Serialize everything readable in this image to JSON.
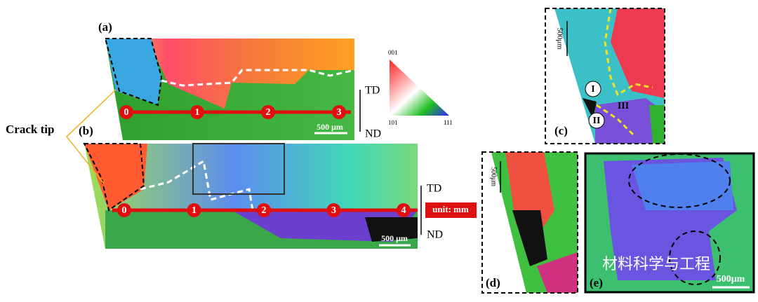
{
  "annotation": "Crack tip",
  "ipf_legend": {
    "corners": [
      "001",
      "101",
      "111"
    ]
  },
  "panels": {
    "a": {
      "label": "(a)",
      "ticks": [
        "0",
        "1",
        "2",
        "3"
      ],
      "scale_bar": "500 μm",
      "top_dir": "TD",
      "bottom_dir": "ND"
    },
    "b": {
      "label": "(b)",
      "ticks": [
        "0",
        "1",
        "2",
        "3",
        "4"
      ],
      "scale_bar": "500 μm",
      "top_dir": "TD",
      "bottom_dir": "ND",
      "unit": "unit: mm"
    },
    "c": {
      "label": "(c)",
      "regions": [
        "I",
        "II",
        "III"
      ],
      "scale_bar": "500μm"
    },
    "d": {
      "label": "(d)",
      "scale_bar": "500μm"
    },
    "e": {
      "label": "(e)",
      "scale_bar": "500μm"
    }
  },
  "watermark": "材料科学与工程"
}
